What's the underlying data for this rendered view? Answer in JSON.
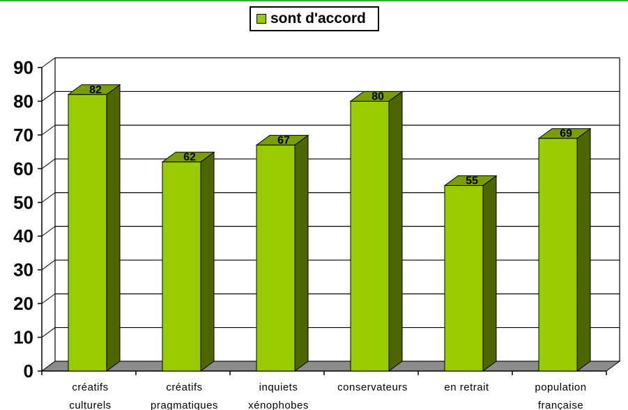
{
  "chart_data": {
    "type": "bar",
    "categories": [
      [
        "créatifs",
        "culturels"
      ],
      [
        "créatifs",
        "pragmatiques"
      ],
      [
        "inquiets",
        "xénophobes"
      ],
      [
        "conservateurs"
      ],
      [
        "en retrait"
      ],
      [
        "population",
        "française"
      ]
    ],
    "series": [
      {
        "name": "sont d'accord",
        "values": [
          82,
          62,
          67,
          80,
          55,
          69
        ],
        "color": "#99cc00"
      }
    ],
    "ylim": [
      0,
      90
    ],
    "yticks": [
      0,
      10,
      20,
      30,
      40,
      50,
      60,
      70,
      80,
      90
    ],
    "grid": true,
    "legend_position": "top-center",
    "style": "3d-bar"
  }
}
